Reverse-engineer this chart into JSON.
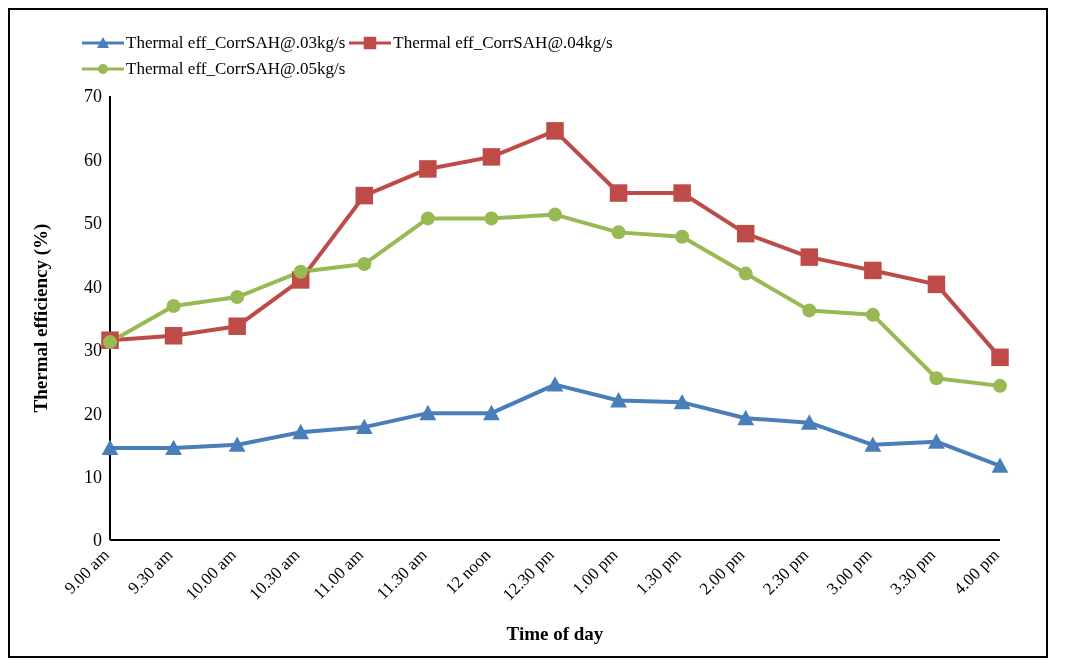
{
  "chart_data": {
    "type": "line",
    "xlabel": "Time of day",
    "ylabel": "Thermal  efficiency (%)",
    "categories": [
      "9.00 am",
      "9.30 am",
      "10.00 am",
      "10.30 am",
      "11.00 am",
      "11.30 am",
      "12 noon",
      "12.30 pm",
      "1.00 pm",
      "1.30 pm",
      "2.00 pm",
      "2.30 pm",
      "3.00 pm",
      "3.30 pm",
      "4.00 pm"
    ],
    "series": [
      {
        "name": "Thermal eff_CorrSAH@.03kg/s",
        "color": "#4a7ebb",
        "marker": "triangle",
        "values": [
          14.5,
          14.5,
          15,
          17,
          17.8,
          20,
          20,
          24.5,
          22,
          21.7,
          19.2,
          18.5,
          15,
          15.5,
          11.7
        ]
      },
      {
        "name": "Thermal eff_CorrSAH@.04kg/s",
        "color": "#be4b48",
        "marker": "square",
        "values": [
          31.5,
          32.2,
          33.7,
          41,
          54.3,
          58.5,
          60.4,
          64.5,
          54.7,
          54.7,
          48.3,
          44.6,
          42.5,
          40.3,
          28.8
        ]
      },
      {
        "name": "Thermal eff_CorrSAH@.05kg/s",
        "color": "#98b954",
        "marker": "circle",
        "values": [
          31.2,
          36.9,
          38.3,
          42.3,
          43.5,
          50.7,
          50.7,
          51.3,
          48.5,
          47.8,
          42,
          36.2,
          35.5,
          25.5,
          24.3
        ]
      }
    ],
    "ylim": [
      0,
      70
    ],
    "yticks": [
      0,
      10,
      20,
      30,
      40,
      50,
      60,
      70
    ],
    "grid": false,
    "legend": "top left",
    "line_style": "solid"
  }
}
